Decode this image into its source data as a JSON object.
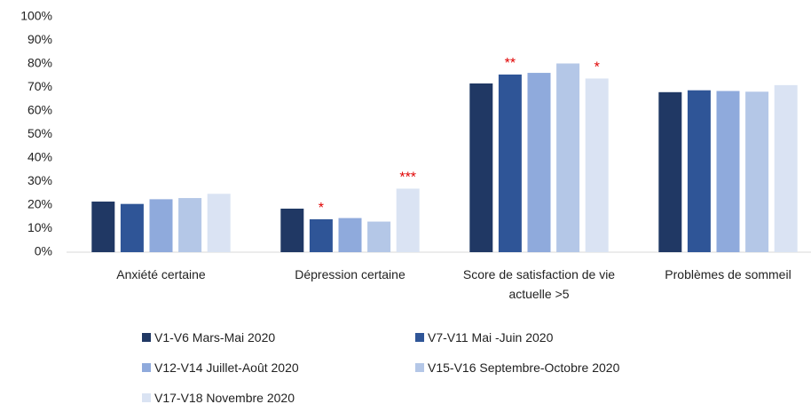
{
  "chart_data": {
    "type": "bar",
    "categories": [
      "Anxiété certaine",
      "Dépression certaine",
      "Score de satisfaction de vie actuelle >5",
      "Problèmes de sommeil"
    ],
    "series": [
      {
        "name": "V1-V6 Mars-Mai 2020",
        "color": "#203864",
        "values": [
          21.5,
          18.5,
          71.7,
          68
        ]
      },
      {
        "name": "V7-V11 Mai -Juin 2020",
        "color": "#2f5597",
        "values": [
          20.5,
          14,
          75.5,
          68.8
        ],
        "annotations": [
          null,
          "*",
          "**",
          null
        ]
      },
      {
        "name": "V12-V14 Juillet-Août 2020",
        "color": "#8faadc",
        "values": [
          22.5,
          14.5,
          76.2,
          68.5
        ]
      },
      {
        "name": "V15-V16 Septembre-Octobre 2020",
        "color": "#b4c7e7",
        "values": [
          23,
          13,
          80.2,
          68.2
        ]
      },
      {
        "name": "V17-V18 Novembre 2020",
        "color": "#dae3f3",
        "values": [
          24.8,
          27,
          73.8,
          71
        ],
        "annotations": [
          null,
          "***",
          "*",
          null
        ]
      }
    ],
    "ylim": [
      0,
      100
    ],
    "yticks": [
      {
        "value": 0,
        "label": "0%"
      },
      {
        "value": 10,
        "label": "10%"
      },
      {
        "value": 20,
        "label": "20%"
      },
      {
        "value": 30,
        "label": "30%"
      },
      {
        "value": 40,
        "label": "40%"
      },
      {
        "value": 50,
        "label": "50%"
      },
      {
        "value": 60,
        "label": "60%"
      },
      {
        "value": 70,
        "label": "70%"
      },
      {
        "value": 80,
        "label": "80%"
      },
      {
        "value": 90,
        "label": "90%"
      },
      {
        "value": 100,
        "label": "100%"
      }
    ],
    "grid": false
  }
}
